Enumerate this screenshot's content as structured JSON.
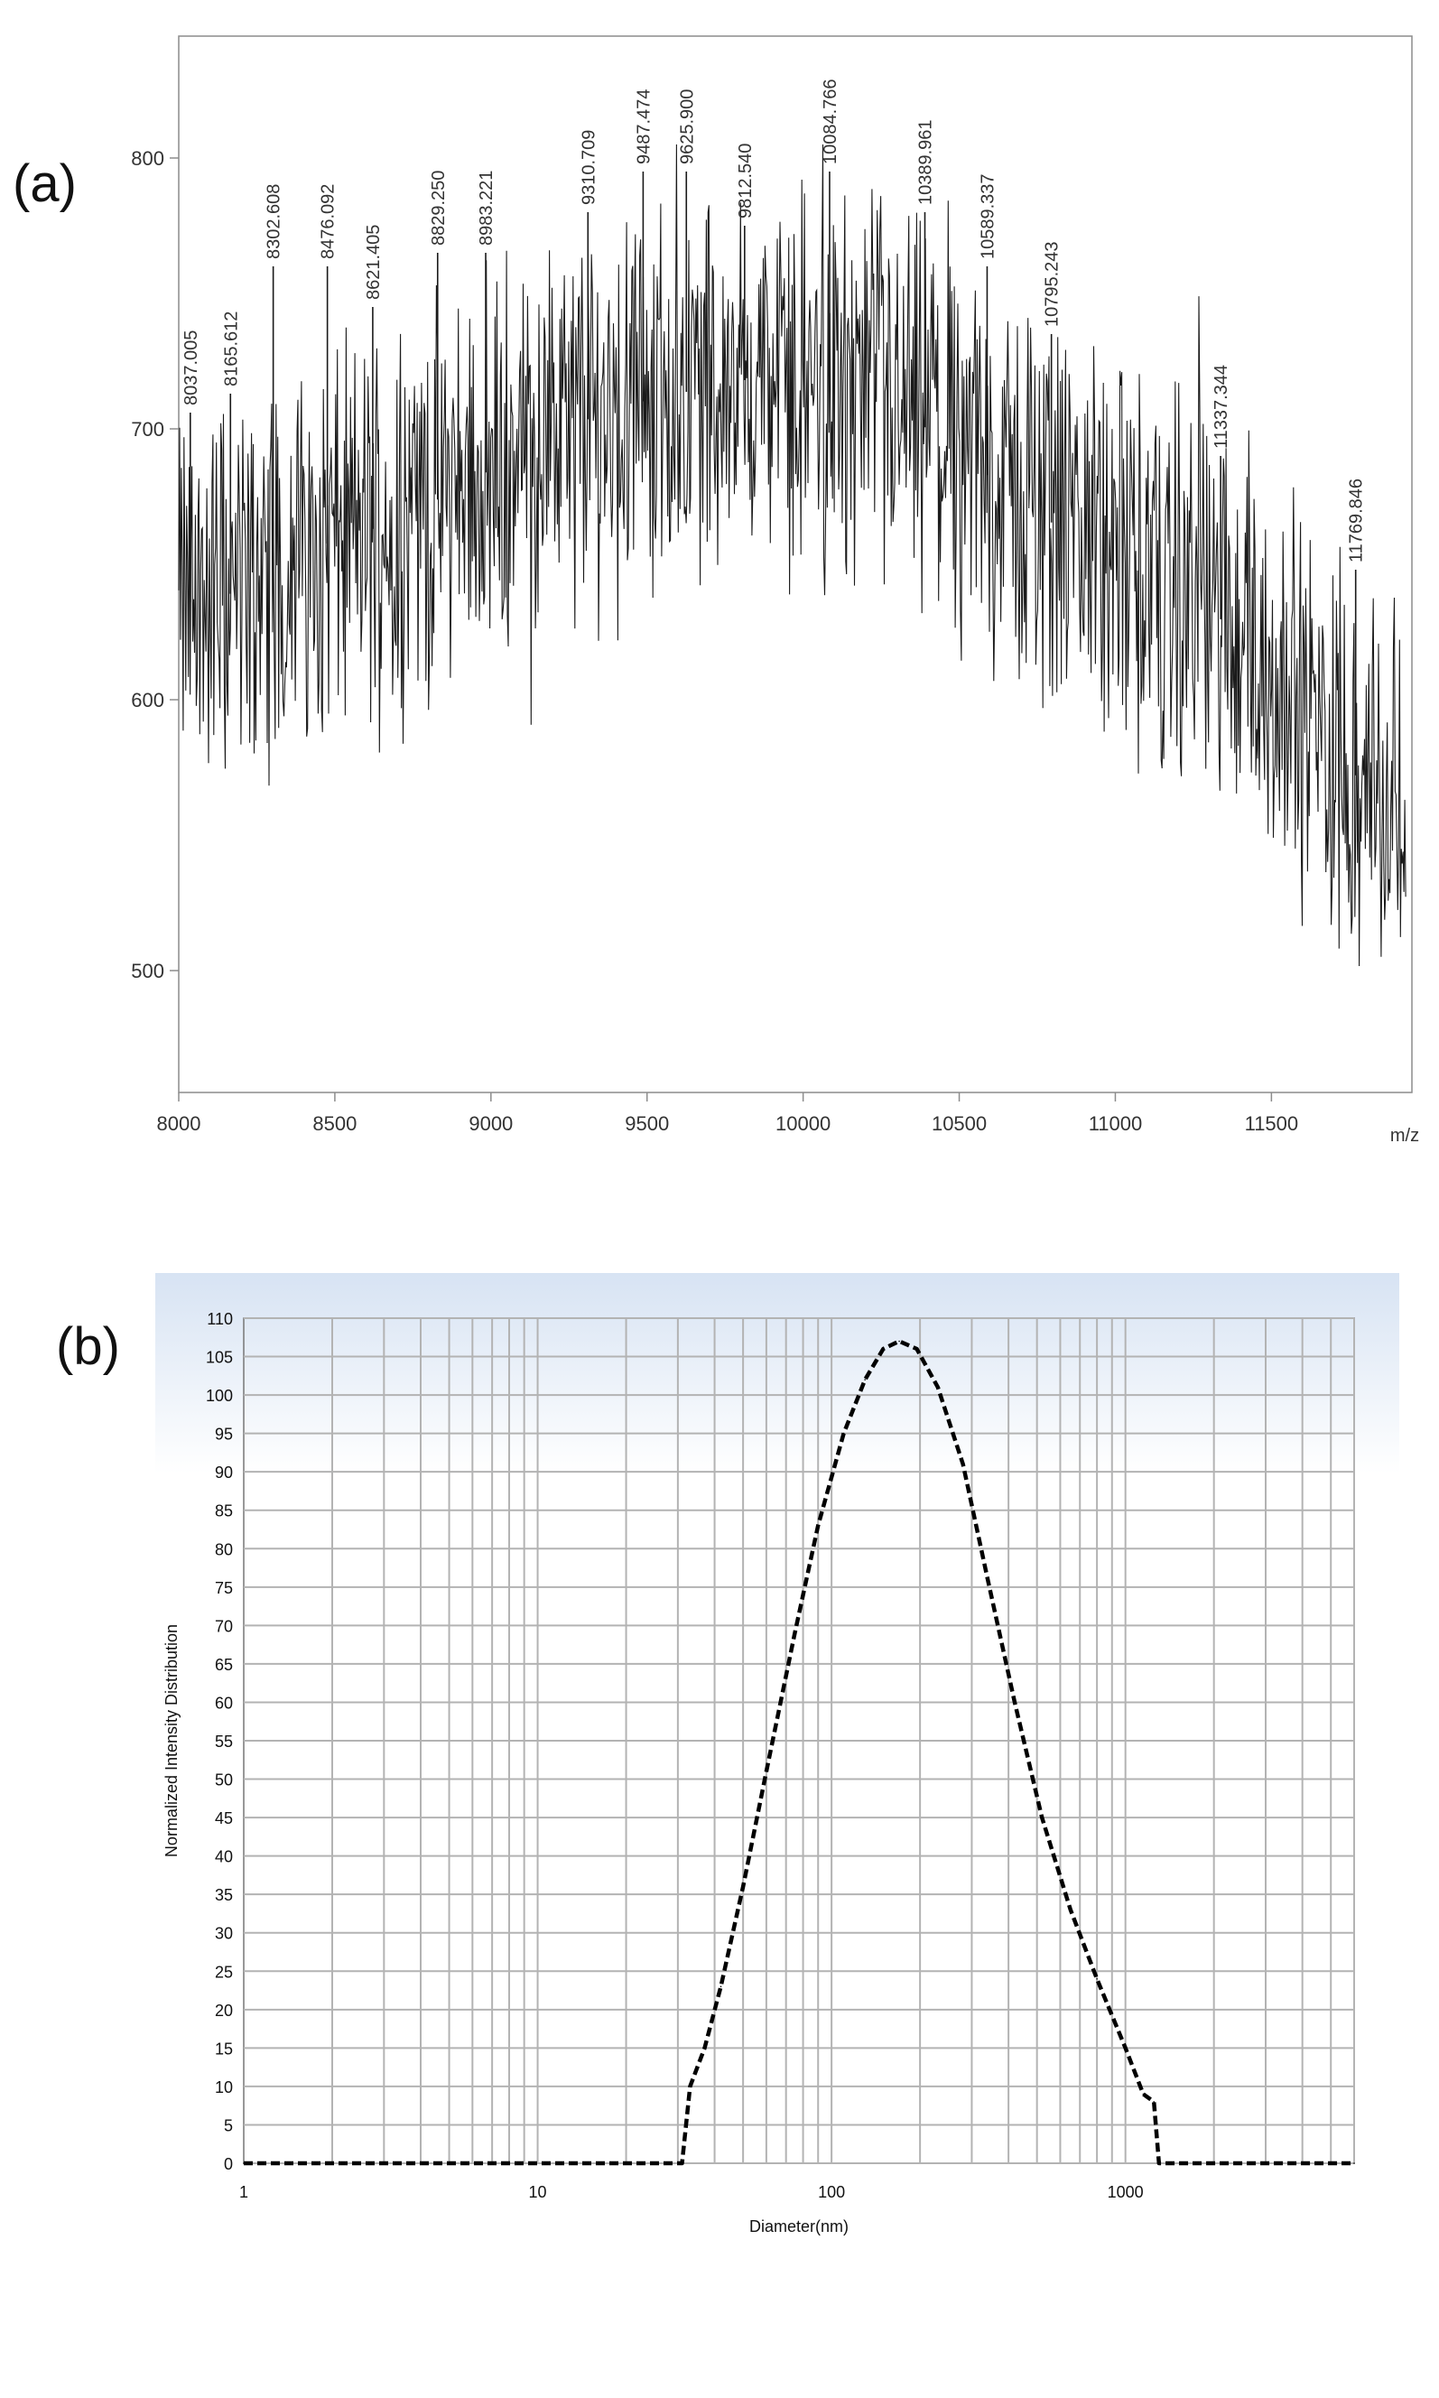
{
  "chart_data": [
    {
      "panel": "(a)",
      "type": "line",
      "title": "",
      "xlabel": "m/z",
      "ylabel": "",
      "xlim": [
        8000,
        11950
      ],
      "ylim": [
        455,
        845
      ],
      "x_ticks": [
        8000,
        8500,
        9000,
        9500,
        10000,
        10500,
        11000,
        11500
      ],
      "y_ticks": [
        500,
        600,
        700,
        800
      ],
      "grid": false,
      "colors": {
        "line": "#1a1a1a",
        "axis": "#8c8c8c",
        "labels": "#333333"
      },
      "baseline": [
        [
          8000,
          635
        ],
        [
          8200,
          640
        ],
        [
          8400,
          655
        ],
        [
          8600,
          662
        ],
        [
          8800,
          672
        ],
        [
          9000,
          685
        ],
        [
          9200,
          698
        ],
        [
          9400,
          708
        ],
        [
          9600,
          713
        ],
        [
          9800,
          718
        ],
        [
          10000,
          718
        ],
        [
          10200,
          712
        ],
        [
          10400,
          700
        ],
        [
          10600,
          682
        ],
        [
          10800,
          665
        ],
        [
          11000,
          652
        ],
        [
          11200,
          640
        ],
        [
          11400,
          625
        ],
        [
          11600,
          595
        ],
        [
          11800,
          568
        ],
        [
          11930,
          555
        ]
      ],
      "peaks": [
        {
          "x": 8037.005,
          "y": 706,
          "label": "8037.005"
        },
        {
          "x": 8165.612,
          "y": 713,
          "label": "8165.612"
        },
        {
          "x": 8302.608,
          "y": 760,
          "label": "8302.608"
        },
        {
          "x": 8476.092,
          "y": 760,
          "label": "8476.092"
        },
        {
          "x": 8621.405,
          "y": 745,
          "label": "8621.405"
        },
        {
          "x": 8829.25,
          "y": 765,
          "label": "8829.250"
        },
        {
          "x": 8983.221,
          "y": 765,
          "label": "8983.221"
        },
        {
          "x": 9310.709,
          "y": 780,
          "label": "9310.709"
        },
        {
          "x": 9487.474,
          "y": 795,
          "label": "9487.474"
        },
        {
          "x": 9625.9,
          "y": 795,
          "label": "9625.900"
        },
        {
          "x": 9812.54,
          "y": 775,
          "label": "9812.540"
        },
        {
          "x": 10084.766,
          "y": 795,
          "label": "10084.766"
        },
        {
          "x": 10389.961,
          "y": 780,
          "label": "10389.961"
        },
        {
          "x": 10589.337,
          "y": 760,
          "label": "10589.337"
        },
        {
          "x": 10795.243,
          "y": 735,
          "label": "10795.243"
        },
        {
          "x": 11337.344,
          "y": 690,
          "label": "11337.344"
        },
        {
          "x": 11769.846,
          "y": 648,
          "label": "11769.846"
        }
      ]
    },
    {
      "panel": "(b)",
      "type": "line",
      "title": "",
      "xlabel": "Diameter(nm)",
      "ylabel": "Normalized Intensity Distribution",
      "x_scale": "log",
      "xlim": [
        1,
        6000
      ],
      "ylim": [
        0,
        110
      ],
      "x_ticks": [
        1,
        10,
        100,
        1000
      ],
      "y_ticks": [
        0,
        5,
        10,
        15,
        20,
        25,
        30,
        35,
        40,
        45,
        50,
        55,
        60,
        65,
        70,
        75,
        80,
        85,
        90,
        95,
        100,
        105,
        110
      ],
      "grid": true,
      "line_style": "dashed",
      "colors": {
        "line": "#000000",
        "grid": "#b3b3b3",
        "band": "#d7e3f3"
      },
      "series": [
        {
          "x": [
            1,
            31,
            33,
            37,
            42,
            50,
            60,
            75,
            90,
            110,
            130,
            150,
            170,
            195,
            230,
            280,
            340,
            420,
            520,
            650,
            800,
            1000,
            1150,
            1250,
            1300,
            6000
          ],
          "y": [
            0,
            0,
            10,
            15,
            23,
            36,
            51,
            69,
            83,
            95,
            102,
            106,
            107,
            106,
            101,
            91,
            76,
            60,
            45,
            33,
            24,
            15,
            9,
            8,
            0,
            0
          ]
        }
      ]
    }
  ]
}
